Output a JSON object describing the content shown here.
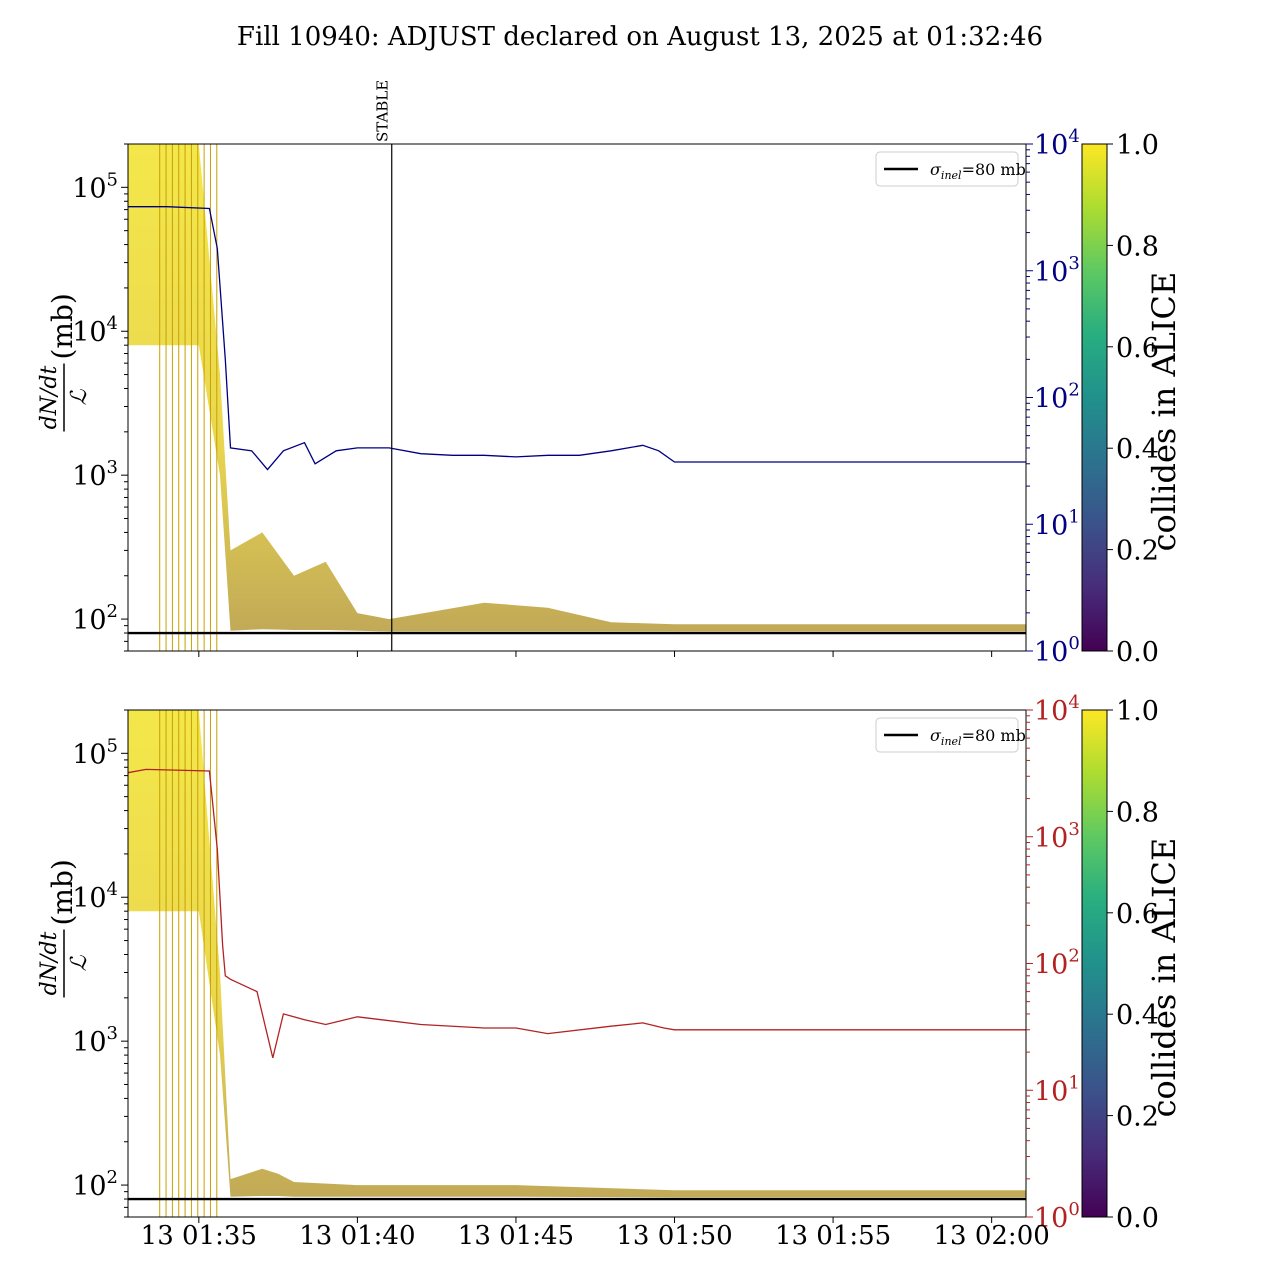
{
  "title": "Fill 10940: ADJUST declared on August 13, 2025 at 01:32:46",
  "x_tick_labels": [
    "13 01:35",
    "13 01:40",
    "13 01:45",
    "13 01:50",
    "13 01:55",
    "13 02:00"
  ],
  "colors": {
    "top_right_axis": "#000080",
    "bottom_right_axis": "#b22222",
    "reference_line": "#000000"
  },
  "chart_data": [
    {
      "type": "line",
      "panel": "top",
      "ylabel": "dN/dt / ℒ (mb)",
      "yscale": "log",
      "ylim": [
        60,
        200000
      ],
      "y_ticks": [
        "10^2",
        "10^3",
        "10^4",
        "10^5"
      ],
      "xlim": [
        "01:32:46",
        "02:01:05"
      ],
      "annotation": {
        "label": "STABLE",
        "time": "01:41:05"
      },
      "reference_line": {
        "label": "σinel=80 mb",
        "value": 80
      },
      "legend_location": "top-right",
      "right_axis": {
        "yscale": "log",
        "ylim": [
          1,
          10000
        ],
        "y_ticks": [
          "10^0",
          "10^1",
          "10^2",
          "10^3",
          "10^4"
        ],
        "series": {
          "name": "",
          "color": "#000080",
          "times": [
            "01:32:46",
            "01:34:00",
            "01:35:20",
            "01:35:35",
            "01:35:50",
            "01:36:00",
            "01:36:40",
            "01:37:10",
            "01:37:40",
            "01:38:20",
            "01:38:40",
            "01:39:20",
            "01:40:00",
            "01:41:00",
            "01:42:00",
            "01:43:00",
            "01:44:00",
            "01:45:00",
            "01:46:00",
            "01:47:00",
            "01:48:00",
            "01:49:00",
            "01:49:30",
            "01:50:00",
            "01:52:00",
            "01:55:00",
            "01:58:00",
            "02:00:00",
            "02:01:05"
          ],
          "values": [
            3200,
            3200,
            3100,
            1500,
            200,
            40,
            38,
            27,
            38,
            44,
            30,
            38,
            40,
            40,
            36,
            35,
            35,
            34,
            35,
            35,
            38,
            42,
            38,
            31,
            31,
            31,
            31,
            31,
            31
          ]
        }
      },
      "colorbar": {
        "label": "collides in ALICE",
        "range": [
          0,
          1
        ],
        "ticks": [
          "0.0",
          "0.2",
          "0.4",
          "0.6",
          "0.8",
          "1.0"
        ],
        "colormap": "viridis"
      },
      "band": {
        "times": [
          "01:32:46",
          "01:35:00",
          "01:35:40",
          "01:36:00",
          "01:37:00",
          "01:38:00",
          "01:39:00",
          "01:40:00",
          "01:41:00",
          "01:44:00",
          "01:46:00",
          "01:48:00",
          "01:50:00",
          "01:55:00",
          "02:00:00",
          "02:01:05"
        ],
        "low": [
          8000,
          8000,
          1000,
          83,
          85,
          84,
          84,
          83,
          82,
          82,
          82,
          82,
          82,
          82,
          82,
          82
        ],
        "high": [
          200000,
          200000,
          5000,
          300,
          400,
          200,
          250,
          110,
          100,
          130,
          120,
          95,
          92,
          92,
          92,
          92
        ]
      }
    },
    {
      "type": "line",
      "panel": "bottom",
      "ylabel": "dN/dt / ℒ (mb)",
      "yscale": "log",
      "ylim": [
        60,
        200000
      ],
      "y_ticks": [
        "10^2",
        "10^3",
        "10^4",
        "10^5"
      ],
      "xlim": [
        "01:32:46",
        "02:01:05"
      ],
      "reference_line": {
        "label": "σinel=80 mb",
        "value": 80
      },
      "legend_location": "top-right",
      "right_axis": {
        "yscale": "log",
        "ylim": [
          1,
          10000
        ],
        "y_ticks": [
          "10^0",
          "10^1",
          "10^2",
          "10^3",
          "10^4"
        ],
        "series": {
          "name": "",
          "color": "#b22222",
          "times": [
            "01:32:46",
            "01:33:20",
            "01:35:20",
            "01:35:35",
            "01:35:45",
            "01:35:50",
            "01:36:00",
            "01:36:50",
            "01:37:20",
            "01:37:40",
            "01:38:20",
            "01:39:00",
            "01:40:00",
            "01:42:00",
            "01:44:00",
            "01:45:00",
            "01:46:00",
            "01:48:00",
            "01:49:00",
            "01:49:40",
            "01:50:00",
            "01:55:00",
            "02:00:00",
            "02:01:05"
          ],
          "values": [
            3200,
            3400,
            3300,
            800,
            140,
            80,
            75,
            60,
            18,
            40,
            36,
            33,
            38,
            33,
            31,
            31,
            28,
            32,
            34,
            31,
            30,
            30,
            30,
            30
          ]
        }
      },
      "colorbar": {
        "label": "collides in ALICE",
        "range": [
          0,
          1
        ],
        "ticks": [
          "0.0",
          "0.2",
          "0.4",
          "0.6",
          "0.8",
          "1.0"
        ],
        "colormap": "viridis"
      },
      "band": {
        "times": [
          "01:32:46",
          "01:35:00",
          "01:35:40",
          "01:36:00",
          "01:37:00",
          "01:37:30",
          "01:38:00",
          "01:40:00",
          "01:45:00",
          "01:50:00",
          "01:55:00",
          "02:00:00",
          "02:01:05"
        ],
        "low": [
          8000,
          8000,
          800,
          83,
          84,
          84,
          83,
          83,
          83,
          82,
          82,
          82,
          82
        ],
        "high": [
          200000,
          200000,
          3000,
          110,
          130,
          120,
          105,
          100,
          100,
          92,
          92,
          92,
          92
        ]
      }
    }
  ]
}
